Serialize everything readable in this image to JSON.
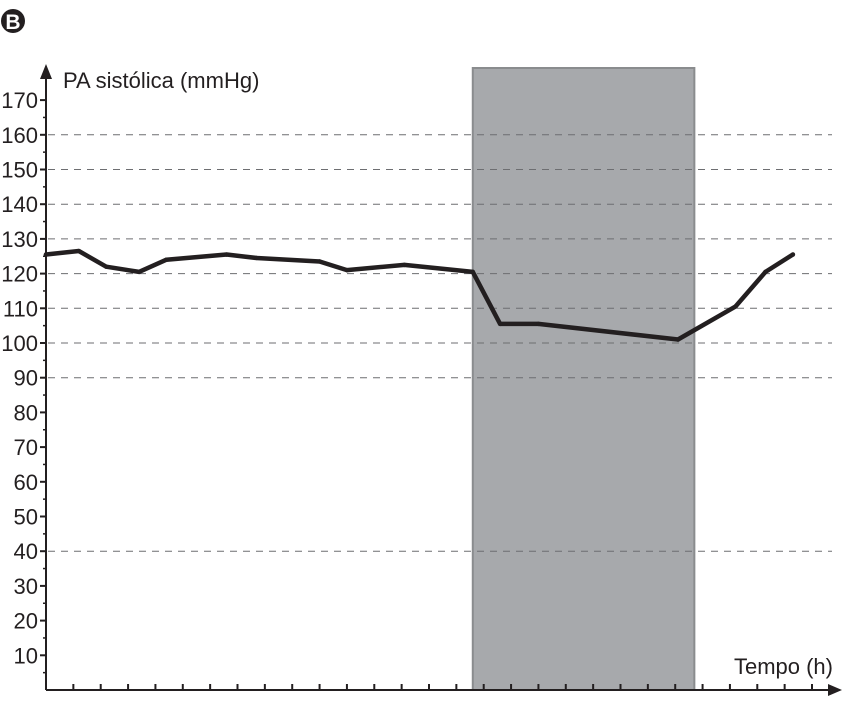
{
  "chart_data": {
    "type": "line",
    "panel_label": "B",
    "ylabel": "PA sistólica (mmHg)",
    "xlabel": "Tempo (h)",
    "ylim": [
      0,
      170
    ],
    "yticks": [
      10,
      20,
      30,
      40,
      50,
      60,
      70,
      80,
      90,
      100,
      110,
      120,
      130,
      140,
      150,
      160,
      170
    ],
    "gridlines": [
      40,
      90,
      100,
      110,
      120,
      130,
      140,
      150,
      160
    ],
    "grid": "dashed",
    "xlim": [
      0,
      28
    ],
    "x_tick_count": 29,
    "shaded_region": {
      "x_start": 15.6,
      "x_end": 23.7,
      "color": "#a7a9ac"
    },
    "series": [
      {
        "color": "#231f20",
        "x": [
          0,
          1.2,
          2.2,
          3.4,
          4.4,
          6.6,
          7.7,
          10.0,
          11.0,
          13.1,
          15.6,
          16.6,
          18.0,
          23.1,
          25.2,
          26.3,
          27.3
        ],
        "y": [
          125.5,
          126.5,
          122.0,
          120.5,
          124.0,
          125.5,
          124.5,
          123.5,
          121.0,
          122.5,
          120.5,
          105.5,
          105.5,
          101.0,
          110.5,
          120.5,
          125.5
        ]
      }
    ]
  }
}
